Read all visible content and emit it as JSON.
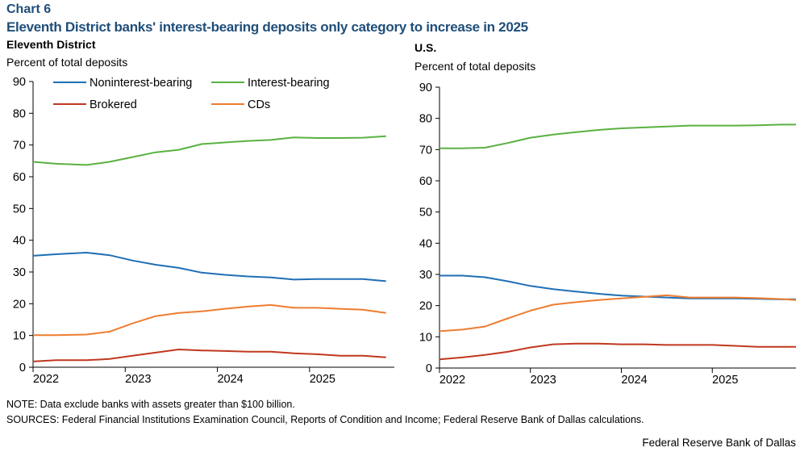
{
  "header": {
    "chart_label": "Chart 6",
    "title": "Eleventh District banks' interest-bearing deposits only category to increase in 2025"
  },
  "colors": {
    "noninterest": "#1f6fb5",
    "interest": "#5ab142",
    "brokered": "#c0381f",
    "cds": "#ee7d31"
  },
  "footer": {
    "note": "NOTE: Data exclude banks with assets greater than $100 billion.",
    "sources": "SOURCES: Federal Financial Institutions Examination Council, Reports of Condition and Income; Federal Reserve Bank of Dallas calculations.",
    "credit": "Federal Reserve Bank of Dallas"
  },
  "chart_data": [
    {
      "type": "line",
      "title": "Eleventh District",
      "ylabel": "Percent of total deposits",
      "ylim": [
        0,
        90
      ],
      "yticks": [
        0,
        10,
        20,
        30,
        40,
        50,
        60,
        70,
        80,
        90
      ],
      "xlim": [
        2022,
        2025.92
      ],
      "xticks": [
        "2022",
        "2023",
        "2024",
        "2025"
      ],
      "legend": "top-inside",
      "grid": false,
      "x": [
        2022.0,
        2022.25,
        2022.58,
        2022.83,
        2023.08,
        2023.33,
        2023.58,
        2023.83,
        2024.08,
        2024.33,
        2024.58,
        2024.83,
        2025.08,
        2025.33,
        2025.58,
        2025.83
      ],
      "series": [
        {
          "name": "Noninterest-bearing",
          "color_key": "noninterest",
          "values": [
            35.1,
            35.6,
            36.1,
            35.3,
            33.6,
            32.3,
            31.3,
            29.8,
            29.1,
            28.6,
            28.3,
            27.6,
            27.8,
            27.8,
            27.8,
            27.1
          ]
        },
        {
          "name": "Interest-bearing",
          "color_key": "interest",
          "values": [
            64.7,
            64.1,
            63.7,
            64.7,
            66.2,
            67.7,
            68.5,
            70.3,
            70.8,
            71.3,
            71.6,
            72.4,
            72.2,
            72.2,
            72.3,
            72.8
          ]
        },
        {
          "name": "Brokered",
          "color_key": "brokered",
          "values": [
            1.8,
            2.2,
            2.2,
            2.6,
            3.6,
            4.6,
            5.6,
            5.3,
            5.1,
            4.9,
            4.9,
            4.4,
            4.1,
            3.6,
            3.6,
            3.1
          ]
        },
        {
          "name": "CDs",
          "color_key": "cds",
          "values": [
            10.1,
            10.1,
            10.3,
            11.2,
            13.8,
            16.1,
            17.1,
            17.6,
            18.4,
            19.1,
            19.6,
            18.7,
            18.7,
            18.4,
            18.1,
            17.1
          ]
        }
      ]
    },
    {
      "type": "line",
      "title": "U.S.",
      "ylabel": "Percent of total deposits",
      "ylim": [
        0,
        90
      ],
      "yticks": [
        0,
        10,
        20,
        30,
        40,
        50,
        60,
        70,
        80,
        90
      ],
      "xlim": [
        2022,
        2025.92
      ],
      "xticks": [
        "2022",
        "2023",
        "2024",
        "2025"
      ],
      "grid": false,
      "x": [
        2022.0,
        2022.25,
        2022.5,
        2022.75,
        2023.0,
        2023.25,
        2023.5,
        2023.75,
        2024.0,
        2024.25,
        2024.5,
        2024.75,
        2025.0,
        2025.25,
        2025.5,
        2025.75,
        2025.92
      ],
      "series": [
        {
          "name": "Noninterest-bearing",
          "color_key": "noninterest",
          "values": [
            29.6,
            29.6,
            29.1,
            27.8,
            26.3,
            25.3,
            24.5,
            23.8,
            23.2,
            22.9,
            22.6,
            22.3,
            22.3,
            22.3,
            22.2,
            22.0,
            22.0
          ]
        },
        {
          "name": "Interest-bearing",
          "color_key": "interest",
          "values": [
            70.4,
            70.4,
            70.6,
            72.1,
            73.8,
            74.8,
            75.6,
            76.3,
            76.8,
            77.1,
            77.4,
            77.7,
            77.7,
            77.7,
            77.8,
            78.0,
            78.0
          ]
        },
        {
          "name": "Brokered",
          "color_key": "brokered",
          "values": [
            2.8,
            3.4,
            4.2,
            5.2,
            6.6,
            7.6,
            7.8,
            7.8,
            7.6,
            7.6,
            7.4,
            7.4,
            7.4,
            7.1,
            6.8,
            6.8,
            6.8
          ]
        },
        {
          "name": "CDs",
          "color_key": "cds",
          "values": [
            11.8,
            12.3,
            13.3,
            15.9,
            18.4,
            20.3,
            21.1,
            21.8,
            22.3,
            22.8,
            23.3,
            22.6,
            22.6,
            22.6,
            22.4,
            22.1,
            21.8
          ]
        }
      ]
    }
  ]
}
